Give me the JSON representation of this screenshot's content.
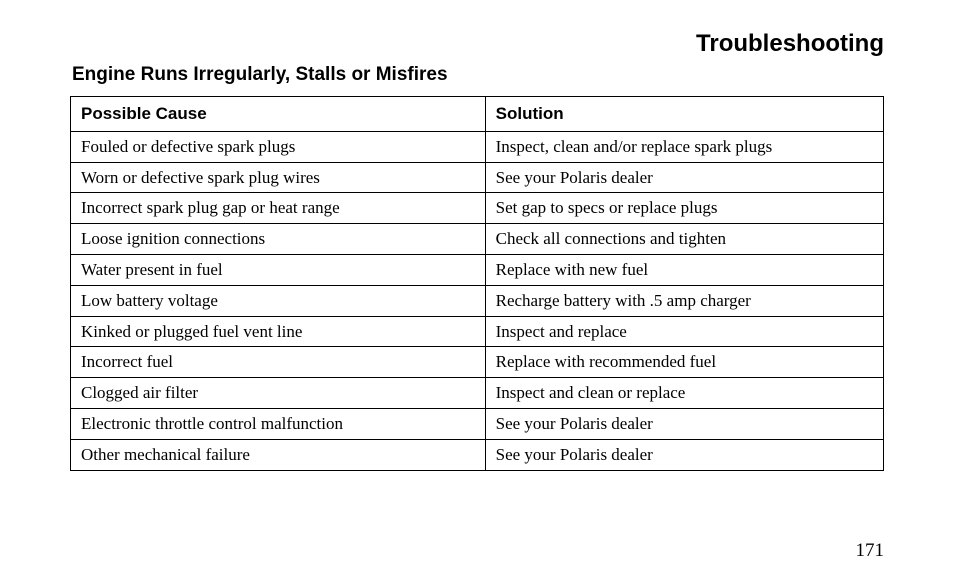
{
  "page_heading": "Troubleshooting",
  "section_heading": "Engine Runs Irregularly, Stalls or Misfires",
  "table": {
    "columns": [
      "Possible Cause",
      "Solution"
    ],
    "rows": [
      [
        "Fouled or defective spark plugs",
        "Inspect, clean and/or replace spark plugs"
      ],
      [
        "Worn or defective spark plug wires",
        "See your Polaris dealer"
      ],
      [
        "Incorrect spark plug gap or heat range",
        "Set gap to specs or replace plugs"
      ],
      [
        "Loose ignition connections",
        "Check all connections and tighten"
      ],
      [
        "Water present in fuel",
        "Replace with new fuel"
      ],
      [
        "Low battery voltage",
        "Recharge battery with .5 amp charger"
      ],
      [
        "Kinked or plugged fuel vent line",
        "Inspect and replace"
      ],
      [
        "Incorrect fuel",
        "Replace with recommended fuel"
      ],
      [
        "Clogged air filter",
        "Inspect and clean or replace"
      ],
      [
        "Electronic throttle control malfunction",
        "See your Polaris dealer"
      ],
      [
        "Other mechanical failure",
        "See your Polaris dealer"
      ]
    ]
  },
  "page_number": "171"
}
